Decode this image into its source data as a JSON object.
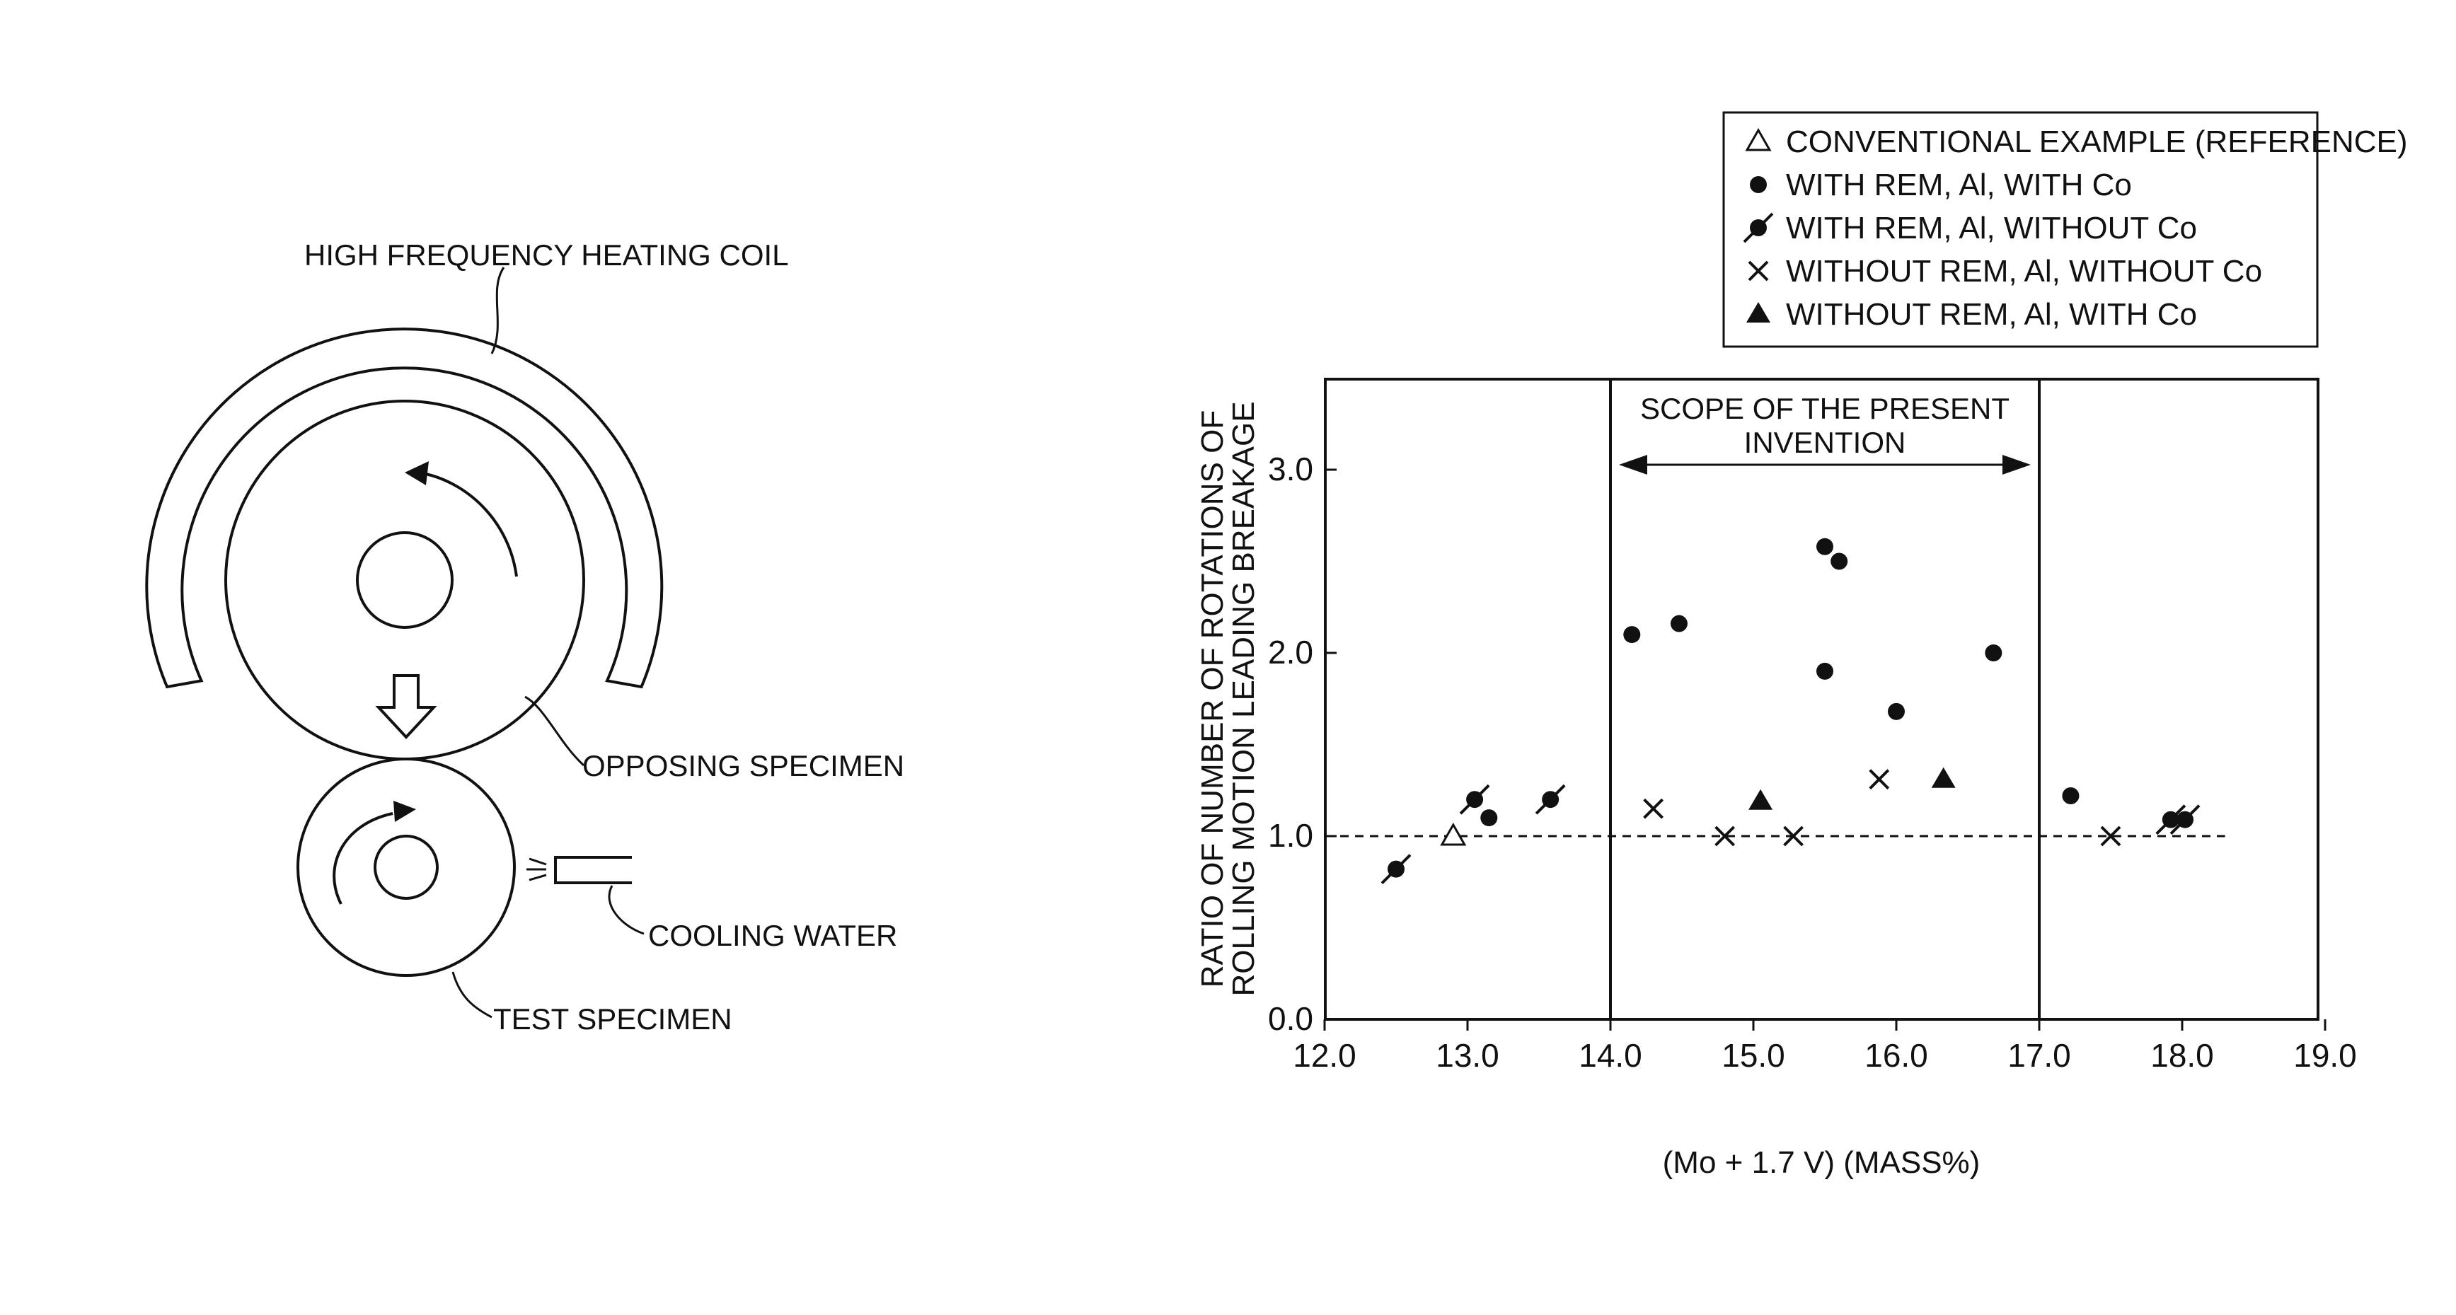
{
  "diagram": {
    "labels": {
      "coil": "HIGH FREQUENCY HEATING COIL",
      "opposing": "OPPOSING SPECIMEN",
      "cooling": "COOLING WATER",
      "test": "TEST SPECIMEN"
    }
  },
  "chart_data": {
    "type": "scatter",
    "xlabel": "(Mo + 1.7 V) (MASS%)",
    "ylabel_lines": [
      "RATIO OF NUMBER OF ROTATIONS OF",
      "ROLLING MOTION LEADING BREAKAGE"
    ],
    "xlim": [
      12.0,
      19.0
    ],
    "ylim": [
      0.0,
      3.5
    ],
    "xticks": [
      "12.0",
      "13.0",
      "14.0",
      "15.0",
      "16.0",
      "17.0",
      "18.0",
      "19.0"
    ],
    "yticks": [
      "0.0",
      "1.0",
      "2.0",
      "3.0"
    ],
    "reference_line": 1.0,
    "scope": {
      "x_start": 14.0,
      "x_end": 17.0,
      "label_lines": [
        "SCOPE OF THE PRESENT",
        "INVENTION"
      ]
    },
    "legend_position": "top-right",
    "series": [
      {
        "name": "CONVENTIONAL EXAMPLE (REFERENCE)",
        "marker": "open-triangle",
        "points": [
          {
            "x": 12.9,
            "y": 1.0
          }
        ]
      },
      {
        "name": "WITH REM, Al, WITH Co",
        "marker": "filled-circle",
        "points": [
          {
            "x": 13.15,
            "y": 1.1
          },
          {
            "x": 14.15,
            "y": 2.1
          },
          {
            "x": 14.48,
            "y": 2.16
          },
          {
            "x": 15.5,
            "y": 2.58
          },
          {
            "x": 15.6,
            "y": 2.5
          },
          {
            "x": 15.5,
            "y": 1.9
          },
          {
            "x": 16.0,
            "y": 1.68
          },
          {
            "x": 16.68,
            "y": 2.0
          },
          {
            "x": 17.22,
            "y": 1.22
          }
        ]
      },
      {
        "name": "WITH REM, Al, WITHOUT Co",
        "marker": "slashed-circle",
        "points": [
          {
            "x": 12.5,
            "y": 0.82
          },
          {
            "x": 13.05,
            "y": 1.2
          },
          {
            "x": 13.58,
            "y": 1.2
          },
          {
            "x": 17.92,
            "y": 1.09
          },
          {
            "x": 18.02,
            "y": 1.09
          }
        ]
      },
      {
        "name": "WITHOUT REM, Al, WITHOUT Co",
        "marker": "cross",
        "points": [
          {
            "x": 14.3,
            "y": 1.15
          },
          {
            "x": 14.8,
            "y": 1.0
          },
          {
            "x": 15.28,
            "y": 1.0
          },
          {
            "x": 15.88,
            "y": 1.31
          },
          {
            "x": 17.5,
            "y": 1.0
          }
        ]
      },
      {
        "name": "WITHOUT REM, Al, WITH Co",
        "marker": "filled-triangle",
        "points": [
          {
            "x": 15.05,
            "y": 1.19
          },
          {
            "x": 16.33,
            "y": 1.31
          }
        ]
      }
    ]
  }
}
